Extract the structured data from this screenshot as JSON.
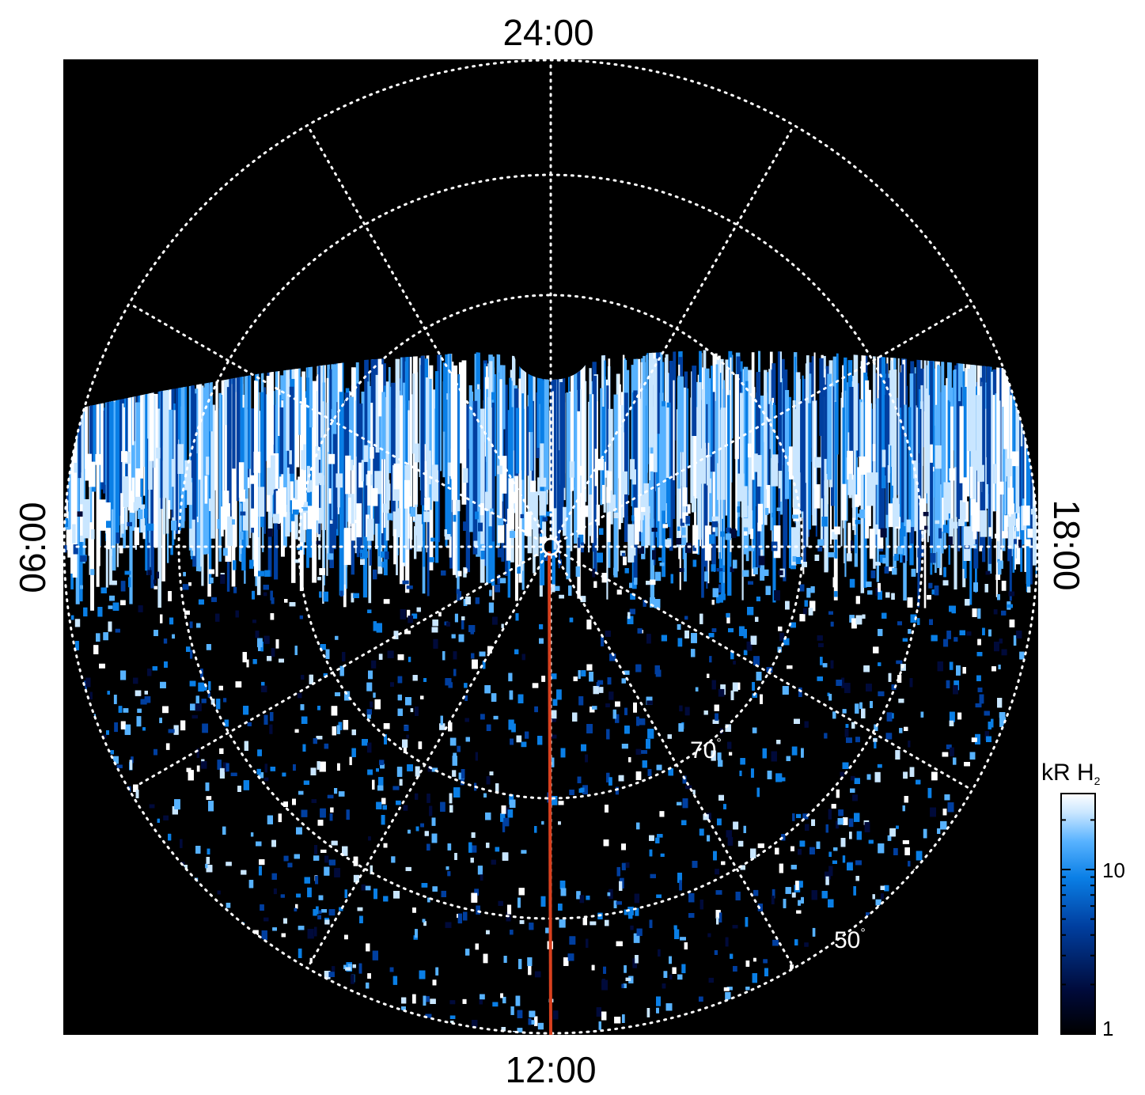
{
  "local_time_labels": {
    "top": "24:00",
    "bottom": "12:00",
    "left": "06:00",
    "right": "18:00"
  },
  "latitude_labels": {
    "inner": "70",
    "outer": "50",
    "degree_symbol": "°"
  },
  "colorbar": {
    "unit_main": "kR H",
    "unit_sub": "2",
    "tick_labels": [
      "10",
      "1"
    ],
    "colors": [
      "#000000",
      "#000a3a",
      "#003fa0",
      "#0a7fe6",
      "#57b2ff",
      "#c9e6ff",
      "#ffffff"
    ]
  },
  "colors": {
    "background": "#000000",
    "grid": "#ffffff",
    "meridian_line": "#d9401e"
  }
}
